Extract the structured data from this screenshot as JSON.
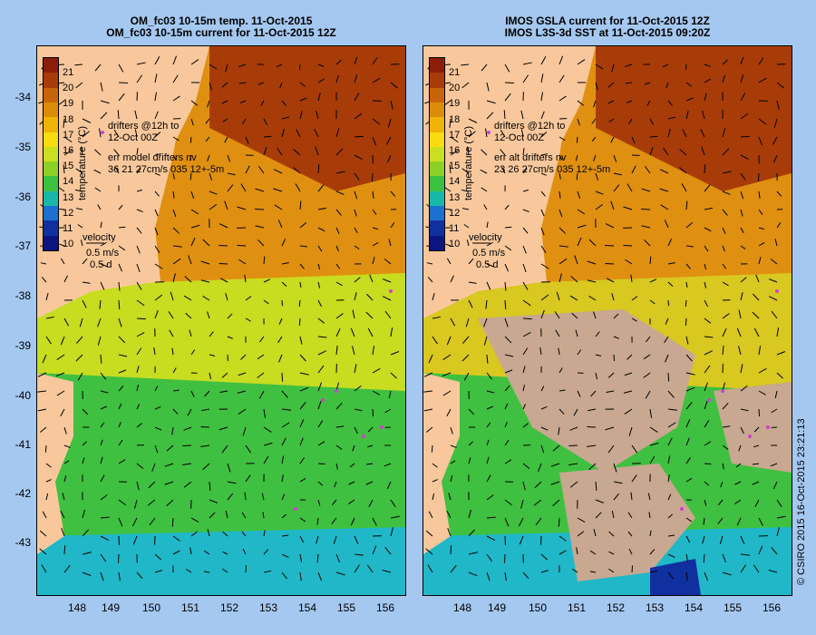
{
  "left_panel": {
    "title_line1": "OM_fc03 10-15m temp. 11-Oct-2015",
    "title_line2": "OM_fc03 10-15m current for 11-Oct-2015 12Z",
    "drifters_line1": "drifters @12h to",
    "drifters_line2": "12-Oct 00Z",
    "err_line1": "err model drifters nv",
    "err_line2": "36 21 27cm/s 035 12+-5m"
  },
  "right_panel": {
    "title_line1": "IMOS GSLA current for 11-Oct-2015 12Z",
    "title_line2": "IMOS L3S-3d SST at 11-Oct-2015 09:20Z",
    "drifters_line1": "drifters @12h to",
    "drifters_line2": "12-Oct 00Z",
    "err_line1": "err alt drifters nv",
    "err_line2": "23 26 27cm/s 035 12+-5m"
  },
  "velocity_legend": {
    "label": "velocity",
    "speed": "0.5 m/s",
    "time": "0.5 d"
  },
  "colorbar": {
    "label": "temperature (°C)",
    "ticks": [
      "21",
      "20",
      "19",
      "18",
      "17",
      "16",
      "15",
      "14",
      "13",
      "12",
      "11",
      "10"
    ],
    "colors": [
      "#8a1e08",
      "#a83c08",
      "#c86408",
      "#dc8c08",
      "#f0b408",
      "#f8dc10",
      "#c8e020",
      "#8cd028",
      "#3cc040",
      "#18b8a8",
      "#1c70d0",
      "#1030a0",
      "#0c1480"
    ]
  },
  "latitude_labels": [
    "-34",
    "-35",
    "-36",
    "-37",
    "-38",
    "-39",
    "-40",
    "-41",
    "-42",
    "-43"
  ],
  "longitude_labels": [
    "148",
    "149",
    "150",
    "151",
    "152",
    "153",
    "154",
    "155",
    "156"
  ],
  "copyright": "© CSIRO 2015   16-Oct-2015 23:21:13",
  "colors": {
    "background": "#a4c8f0",
    "land": "#f8c89c",
    "drifter": "#d040d0",
    "missing": "#c8a890"
  }
}
